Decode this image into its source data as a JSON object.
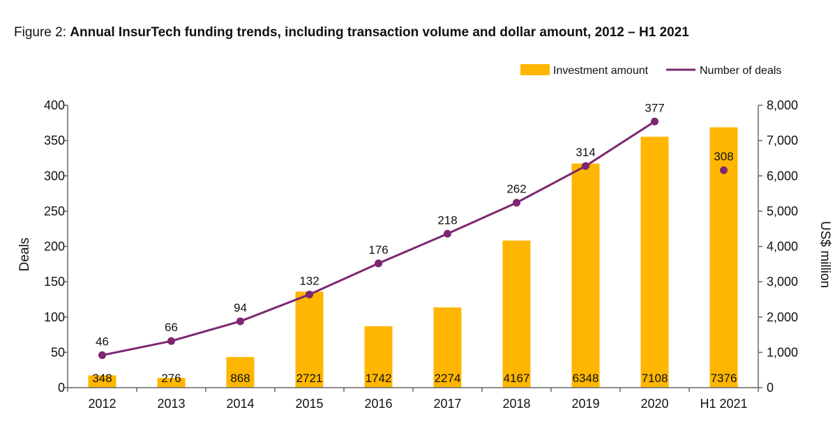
{
  "title_prefix": "Figure 2: ",
  "title_main": "Annual InsurTech funding trends, including transaction volume and dollar amount, 2012 – H1 2021",
  "colors": {
    "bar": "#FFB600",
    "line": "#7D2671",
    "axis": "#666666"
  },
  "chart_data": {
    "type": "bar",
    "categories": [
      "2012",
      "2013",
      "2014",
      "2015",
      "2016",
      "2017",
      "2018",
      "2019",
      "2020",
      "H1 2021"
    ],
    "series": [
      {
        "name": "Investment amount",
        "type": "bar",
        "axis": "right",
        "values": [
          348,
          276,
          868,
          2721,
          1742,
          2274,
          4167,
          6348,
          7108,
          7376
        ]
      },
      {
        "name": "Number of deals",
        "type": "line",
        "axis": "left",
        "values": [
          46,
          66,
          94,
          132,
          176,
          218,
          262,
          314,
          377,
          308
        ]
      }
    ],
    "ylabel_left": "Deals",
    "ylabel_right": "US$ million",
    "ylim_left": [
      0,
      400
    ],
    "ylim_right": [
      0,
      8000
    ],
    "yticks_left": [
      "0",
      "50",
      "100",
      "150",
      "200",
      "250",
      "300",
      "350",
      "400"
    ],
    "yticks_right": [
      "0",
      "1,000",
      "2,000",
      "3,000",
      "4,000",
      "5,000",
      "6,000",
      "7,000",
      "8,000"
    ],
    "legend_position": "top-right",
    "grid": false
  }
}
